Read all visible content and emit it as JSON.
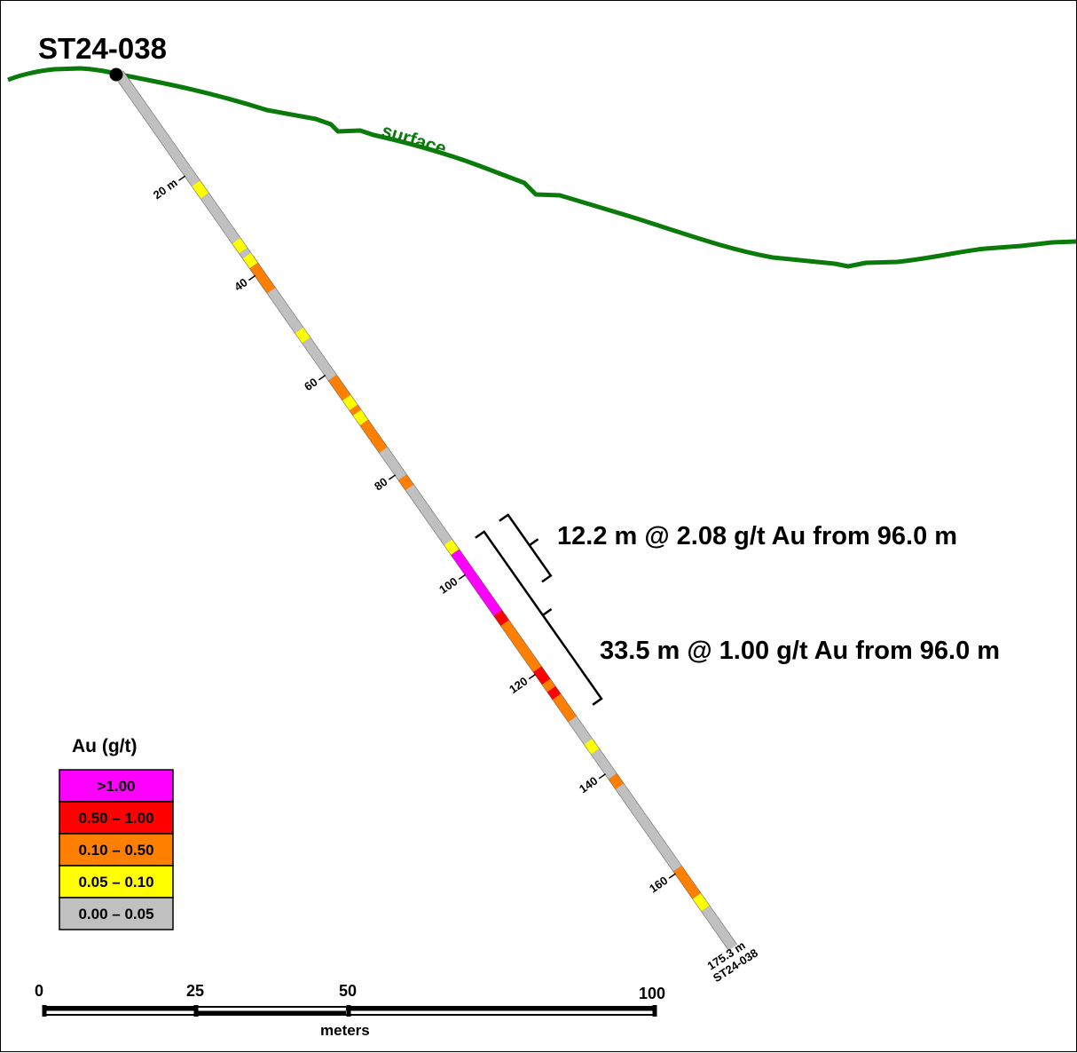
{
  "hole": {
    "id": "ST24-038",
    "end_depth_label": "175.3 m",
    "end_hole_label": "ST24-038",
    "total_depth_m": 175.3,
    "depth_ticks": [
      {
        "depth": 20,
        "label": "20 m"
      },
      {
        "depth": 40,
        "label": "40"
      },
      {
        "depth": 60,
        "label": "60"
      },
      {
        "depth": 80,
        "label": "80"
      },
      {
        "depth": 100,
        "label": "100"
      },
      {
        "depth": 120,
        "label": "120"
      },
      {
        "depth": 140,
        "label": "140"
      },
      {
        "depth": 160,
        "label": "160"
      }
    ],
    "assay_intervals": [
      {
        "from": 0,
        "to": 22,
        "grade_class": "0.00 – 0.05"
      },
      {
        "from": 22,
        "to": 24.5,
        "grade_class": "0.05 – 0.10"
      },
      {
        "from": 24.5,
        "to": 33.5,
        "grade_class": "0.00 – 0.05"
      },
      {
        "from": 33.5,
        "to": 35.5,
        "grade_class": "0.05 – 0.10"
      },
      {
        "from": 35.5,
        "to": 36.5,
        "grade_class": "0.00 – 0.05"
      },
      {
        "from": 36.5,
        "to": 38.5,
        "grade_class": "0.05 – 0.10"
      },
      {
        "from": 38.5,
        "to": 43.5,
        "grade_class": "0.10 – 0.50"
      },
      {
        "from": 43.5,
        "to": 51.5,
        "grade_class": "0.00 – 0.05"
      },
      {
        "from": 51.5,
        "to": 53.5,
        "grade_class": "0.05 – 0.10"
      },
      {
        "from": 53.5,
        "to": 61,
        "grade_class": "0.00 – 0.05"
      },
      {
        "from": 61,
        "to": 65,
        "grade_class": "0.10 – 0.50"
      },
      {
        "from": 65,
        "to": 67,
        "grade_class": "0.05 – 0.10"
      },
      {
        "from": 67,
        "to": 68,
        "grade_class": "0.10 – 0.50"
      },
      {
        "from": 68,
        "to": 70,
        "grade_class": "0.05 – 0.10"
      },
      {
        "from": 70,
        "to": 75.5,
        "grade_class": "0.10 – 0.50"
      },
      {
        "from": 75.5,
        "to": 81,
        "grade_class": "0.00 – 0.05"
      },
      {
        "from": 81,
        "to": 83,
        "grade_class": "0.10 – 0.50"
      },
      {
        "from": 83,
        "to": 94,
        "grade_class": "0.00 – 0.05"
      },
      {
        "from": 94,
        "to": 96,
        "grade_class": "0.05 – 0.10"
      },
      {
        "from": 96,
        "to": 108.2,
        "grade_class": ">1.00"
      },
      {
        "from": 108.2,
        "to": 110.2,
        "grade_class": "0.50 – 1.00"
      },
      {
        "from": 110.2,
        "to": 119.5,
        "grade_class": "0.10 – 0.50"
      },
      {
        "from": 119.5,
        "to": 122,
        "grade_class": "0.50 – 1.00"
      },
      {
        "from": 122,
        "to": 123.5,
        "grade_class": "0.10 – 0.50"
      },
      {
        "from": 123.5,
        "to": 125,
        "grade_class": "0.50 – 1.00"
      },
      {
        "from": 125,
        "to": 129.5,
        "grade_class": "0.10 – 0.50"
      },
      {
        "from": 129.5,
        "to": 134,
        "grade_class": "0.00 – 0.05"
      },
      {
        "from": 134,
        "to": 136,
        "grade_class": "0.05 – 0.10"
      },
      {
        "from": 136,
        "to": 141,
        "grade_class": "0.00 – 0.05"
      },
      {
        "from": 141,
        "to": 143,
        "grade_class": "0.10 – 0.50"
      },
      {
        "from": 143,
        "to": 159.5,
        "grade_class": "0.00 – 0.05"
      },
      {
        "from": 159.5,
        "to": 165,
        "grade_class": "0.10 – 0.50"
      },
      {
        "from": 165,
        "to": 167.5,
        "grade_class": "0.05 – 0.10"
      },
      {
        "from": 167.5,
        "to": 175.3,
        "grade_class": "0.00 – 0.05"
      }
    ]
  },
  "surface_label": "surface",
  "intercepts": [
    {
      "from": 96.0,
      "to": 108.2,
      "text": "12.2 m @ 2.08 g/t Au from 96.0 m"
    },
    {
      "from": 96.0,
      "to": 129.5,
      "text": "33.5 m @ 1.00 g/t Au from 96.0 m"
    }
  ],
  "legend": {
    "title": "Au (g/t)",
    "classes": [
      {
        "label": ">1.00",
        "color": "#ff00ff"
      },
      {
        "label": "0.50 – 1.00",
        "color": "#ff0000"
      },
      {
        "label": "0.10 – 0.50",
        "color": "#ff8000"
      },
      {
        "label": "0.05 – 0.10",
        "color": "#ffff00"
      },
      {
        "label": "0.00 – 0.05",
        "color": "#c0c0c0"
      }
    ]
  },
  "scale_bar": {
    "ticks": [
      "0",
      "25",
      "50",
      "100"
    ],
    "unit": "meters"
  },
  "colors": {
    "surface": "#0a7a0a",
    "background": "#ffffff"
  }
}
